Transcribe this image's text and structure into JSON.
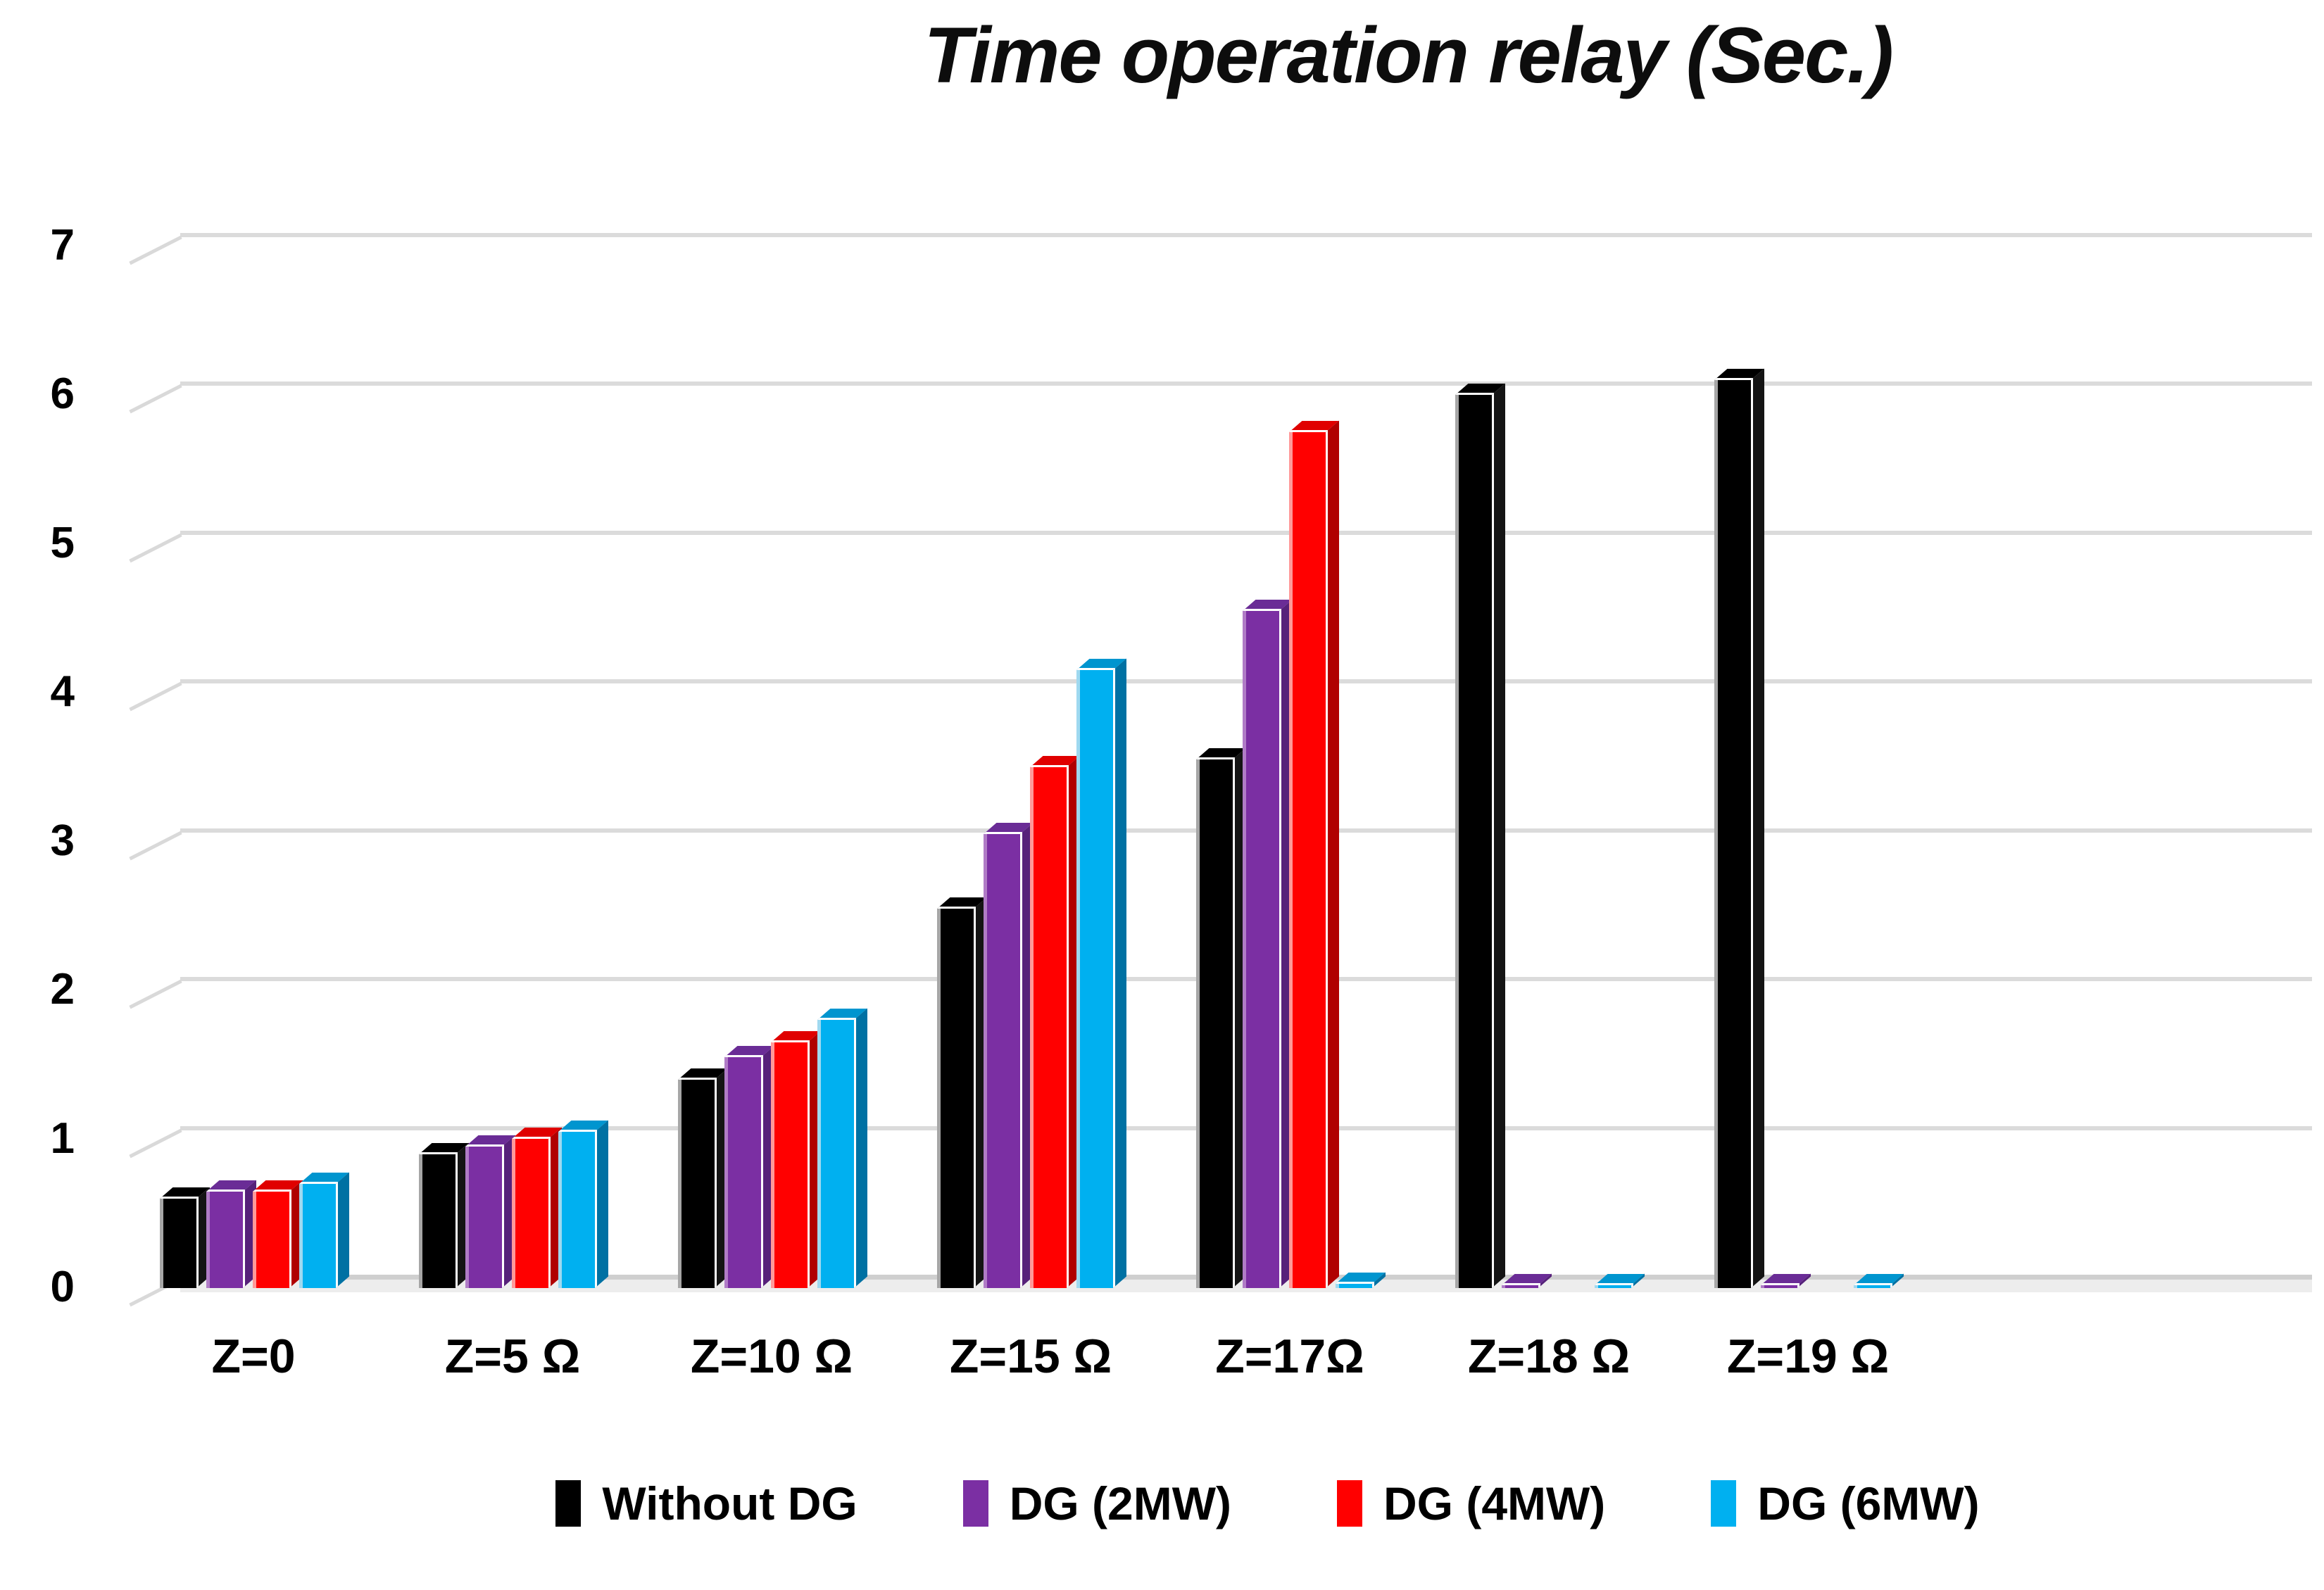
{
  "title": "Time operation relay (Sec.)",
  "chart_data": {
    "type": "bar",
    "style": "3d-clustered-column",
    "title": "Time operation relay (Sec.)",
    "xlabel": "",
    "ylabel": "",
    "ylim": [
      0,
      7
    ],
    "yticks": [
      0,
      1,
      2,
      3,
      4,
      5,
      6,
      7
    ],
    "grid": true,
    "legend_position": "bottom",
    "categories": [
      "Z=0",
      "Z=5 Ω",
      "Z=10 Ω",
      "Z=15 Ω",
      "Z=17Ω",
      "Z=18 Ω",
      "Z=19 Ω"
    ],
    "series": [
      {
        "name": "Without DG",
        "color": "#000000",
        "side_color": "#141414",
        "top_color": "#000000",
        "highlight_color": "#A6A6A6",
        "values": [
          0.6,
          0.9,
          1.4,
          2.55,
          3.55,
          6.0,
          6.1
        ]
      },
      {
        "name": "DG (2MW)",
        "color": "#7B2FA3",
        "side_color": "#56217A",
        "top_color": "#6A2C96",
        "highlight_color": "#B07CC6",
        "values": [
          0.65,
          0.95,
          1.55,
          3.05,
          4.55,
          0.02,
          0.02
        ]
      },
      {
        "name": "DG (4MW)",
        "color": "#FF0000",
        "side_color": "#B00000",
        "top_color": "#E00000",
        "highlight_color": "#FF9999",
        "values": [
          0.65,
          1.0,
          1.65,
          3.5,
          5.75,
          0,
          0
        ]
      },
      {
        "name": "DG (6MW)",
        "color": "#00B0F0",
        "side_color": "#0071A3",
        "top_color": "#0095CF",
        "highlight_color": "#9FD9F0",
        "values": [
          0.7,
          1.05,
          1.8,
          4.15,
          0.03,
          0.02,
          0.02
        ]
      }
    ]
  },
  "colors": {
    "background": "#FFFFFF",
    "gridline": "#DBDBDB",
    "text": "#000000"
  }
}
